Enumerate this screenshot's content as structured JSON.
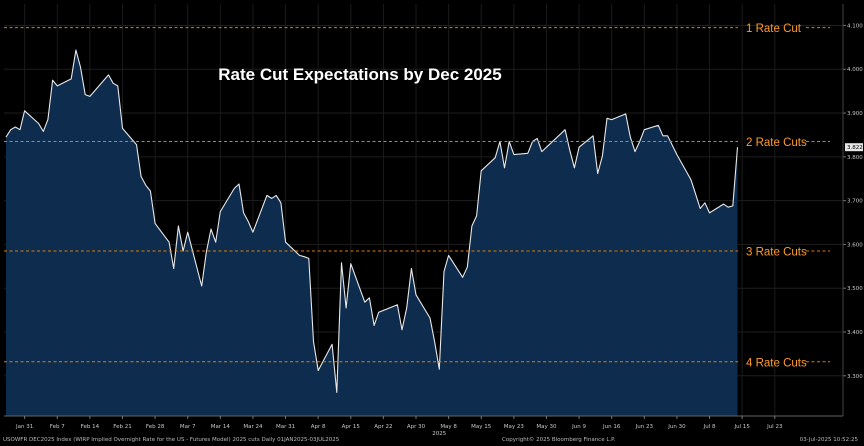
{
  "chart_data": {
    "type": "area",
    "title": "Rate Cut Expectations by Dec 2025",
    "x_ticks": [
      "Jan 31",
      "Feb 7",
      "Feb 14",
      "Feb 21",
      "Feb 28",
      "Mar 7",
      "Mar 14",
      "Mar 24",
      "Mar 31",
      "Apr 8",
      "Apr 15",
      "Apr 22",
      "Apr 30",
      "May 8",
      "May 15",
      "May 23",
      "May 30",
      "Jun 9",
      "Jun 16",
      "Jun 23",
      "Jun 30",
      "Jul 8",
      "Jul 15",
      "Jul 23"
    ],
    "x_year_label": "2025",
    "y_ticks": [
      "3.300",
      "3.400",
      "3.500",
      "3.600",
      "3.700",
      "3.800",
      "3.900",
      "4.000",
      "4.100"
    ],
    "ylim": [
      3.255,
      4.125
    ],
    "x_range_days": [
      0,
      179
    ],
    "series": [
      {
        "x": [
          "2025-01-27",
          "2025-01-28",
          "2025-01-29",
          "2025-01-30",
          "2025-01-31",
          "2025-02-03",
          "2025-02-04",
          "2025-02-05",
          "2025-02-06",
          "2025-02-07",
          "2025-02-10",
          "2025-02-11",
          "2025-02-12",
          "2025-02-13",
          "2025-02-14",
          "2025-02-18",
          "2025-02-19",
          "2025-02-20",
          "2025-02-21",
          "2025-02-24",
          "2025-02-25",
          "2025-02-26",
          "2025-02-27",
          "2025-02-28",
          "2025-03-03",
          "2025-03-04",
          "2025-03-05",
          "2025-03-06",
          "2025-03-07",
          "2025-03-10",
          "2025-03-11",
          "2025-03-12",
          "2025-03-13",
          "2025-03-14",
          "2025-03-17",
          "2025-03-18",
          "2025-03-19",
          "2025-03-20",
          "2025-03-21",
          "2025-03-24",
          "2025-03-25",
          "2025-03-26",
          "2025-03-27",
          "2025-03-28",
          "2025-03-31",
          "2025-04-01",
          "2025-04-02",
          "2025-04-03",
          "2025-04-04",
          "2025-04-07",
          "2025-04-08",
          "2025-04-09",
          "2025-04-10",
          "2025-04-11",
          "2025-04-14",
          "2025-04-15",
          "2025-04-16",
          "2025-04-17",
          "2025-04-21",
          "2025-04-22",
          "2025-04-23",
          "2025-04-24",
          "2025-04-25",
          "2025-04-28",
          "2025-04-29",
          "2025-04-30",
          "2025-05-01",
          "2025-05-02",
          "2025-05-05",
          "2025-05-06",
          "2025-05-07",
          "2025-05-08",
          "2025-05-09",
          "2025-05-12",
          "2025-05-13",
          "2025-05-14",
          "2025-05-15",
          "2025-05-16",
          "2025-05-19",
          "2025-05-20",
          "2025-05-21",
          "2025-05-22",
          "2025-05-23",
          "2025-05-27",
          "2025-05-28",
          "2025-05-29",
          "2025-05-30",
          "2025-06-02",
          "2025-06-03",
          "2025-06-04",
          "2025-06-05",
          "2025-06-06",
          "2025-06-09",
          "2025-06-10",
          "2025-06-11",
          "2025-06-12",
          "2025-06-13",
          "2025-06-16",
          "2025-06-17",
          "2025-06-18",
          "2025-06-20",
          "2025-06-23",
          "2025-06-24",
          "2025-06-25",
          "2025-06-26",
          "2025-06-27",
          "2025-06-30",
          "2025-07-01",
          "2025-07-02",
          "2025-07-03"
        ],
        "y": [
          3.845,
          3.862,
          3.868,
          3.862,
          3.905,
          3.876,
          3.858,
          3.885,
          3.975,
          3.962,
          3.978,
          4.044,
          4.005,
          3.942,
          3.938,
          3.987,
          3.968,
          3.962,
          3.865,
          3.828,
          3.755,
          3.735,
          3.722,
          3.648,
          3.605,
          3.545,
          3.642,
          3.585,
          3.628,
          3.505,
          3.582,
          3.635,
          3.605,
          3.675,
          3.728,
          3.738,
          3.672,
          3.652,
          3.628,
          3.712,
          3.705,
          3.712,
          3.695,
          3.605,
          3.575,
          3.572,
          3.568,
          3.378,
          3.312,
          3.372,
          3.262,
          3.558,
          3.455,
          3.556,
          3.468,
          3.478,
          3.415,
          3.445,
          3.462,
          3.405,
          3.455,
          3.545,
          3.485,
          3.432,
          3.378,
          3.315,
          3.538,
          3.575,
          3.525,
          3.548,
          3.642,
          3.665,
          3.768,
          3.798,
          3.835,
          3.775,
          3.835,
          3.805,
          3.808,
          3.835,
          3.842,
          3.812,
          3.822,
          3.862,
          3.815,
          3.775,
          3.822,
          3.848,
          3.762,
          3.802,
          3.888,
          3.885,
          3.898,
          3.845,
          3.812,
          3.835,
          3.862,
          3.872,
          3.848,
          3.848,
          3.805,
          3.748,
          3.715,
          3.682,
          3.695,
          3.672,
          3.692,
          3.685,
          3.688,
          3.822
        ]
      }
    ],
    "last_value_label": "3.822",
    "colors": {
      "fill": "#0d2c4e",
      "line": "#e8e8e8",
      "level_line": "#e07b00",
      "level_text": "#ff9a2a",
      "background": "#000000",
      "axis_text": "#c8c8c8"
    },
    "levels": [
      {
        "label": "1 Rate Cut",
        "y": 4.095
      },
      {
        "label": "2 Rate Cuts",
        "y": 3.835
      },
      {
        "label": "3 Rate Cuts",
        "y": 3.585
      },
      {
        "label": "4 Rate Cuts",
        "y": 3.332
      }
    ]
  },
  "footer": {
    "source": "USOWFR DEC2025 Index (WIRP Implied Overnight Rate for the US - Futures Model) 2025 cuts  Daily 01JAN2025-03JUL2025",
    "copyright": "Copyright© 2025 Bloomberg Finance L.P.",
    "timestamp": "03-Jul-2025 10:52:25"
  }
}
